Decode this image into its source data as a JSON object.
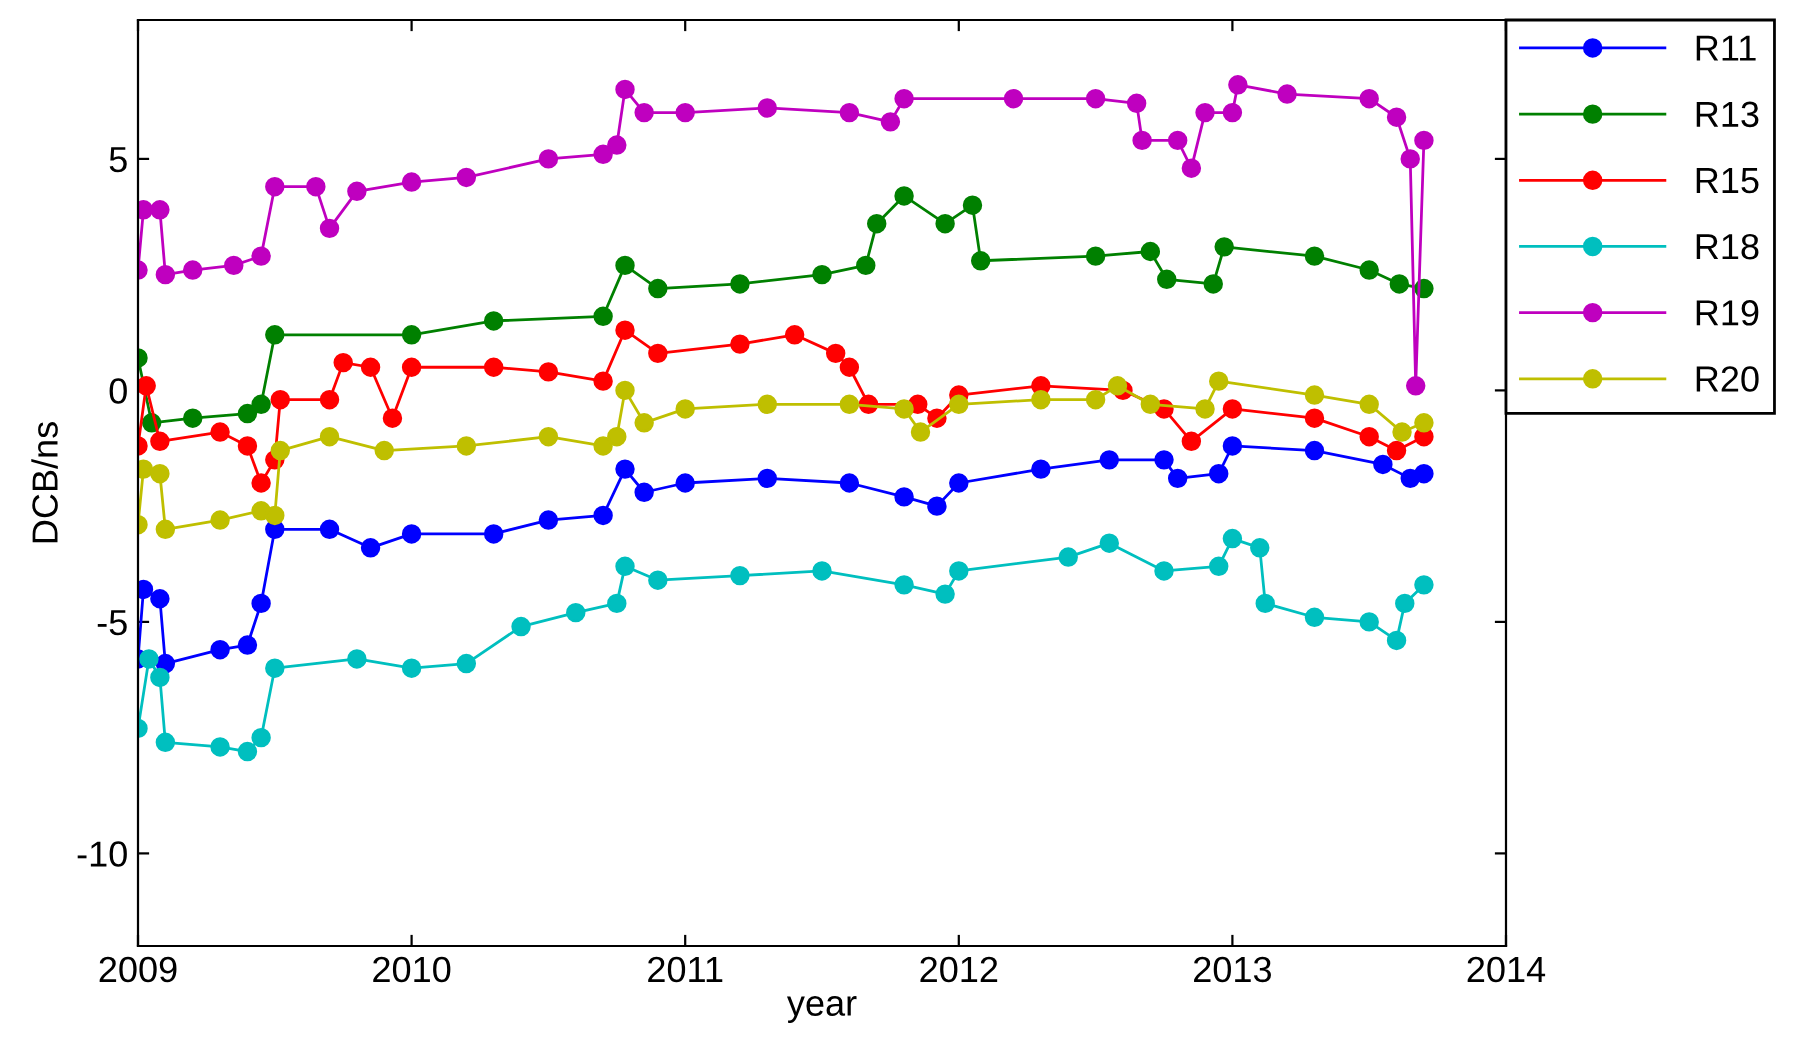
{
  "chart_data": {
    "type": "line",
    "xlabel": "year",
    "ylabel": "DCB/ns",
    "xlim": [
      2009,
      2014
    ],
    "xticks": [
      2009,
      2010,
      2011,
      2012,
      2013,
      2014
    ],
    "ylim": [
      -12,
      8
    ],
    "yticks": [
      -10,
      -5,
      0,
      5
    ],
    "grid": false,
    "legend": "top right",
    "marker": "circle",
    "line_style": "solid",
    "series": [
      {
        "name": "R11",
        "color": "#0000ff",
        "x": [
          2009,
          2009.02,
          2009.08,
          2009.1,
          2009.3,
          2009.4,
          2009.45,
          2009.5,
          2009.7,
          2009.85,
          2010.0,
          2010.3,
          2010.5,
          2010.7,
          2010.78,
          2010.85,
          2011.0,
          2011.3,
          2011.6,
          2011.8,
          2011.92,
          2012.0,
          2012.3,
          2012.55,
          2012.75,
          2012.8,
          2012.95,
          2013.0,
          2013.3,
          2013.55,
          2013.65,
          2013.7
        ],
        "values": [
          -5.8,
          -4.3,
          -4.5,
          -5.9,
          -5.6,
          -5.5,
          -4.6,
          -3.0,
          -3.0,
          -3.4,
          -3.1,
          -3.1,
          -2.8,
          -2.7,
          -1.7,
          -2.2,
          -2.0,
          -1.9,
          -2.0,
          -2.3,
          -2.5,
          -2.0,
          -1.7,
          -1.5,
          -1.5,
          -1.9,
          -1.8,
          -1.2,
          -1.3,
          -1.6,
          -1.9,
          -1.8
        ]
      },
      {
        "name": "R13",
        "color": "#008000",
        "x": [
          2009,
          2009.05,
          2009.2,
          2009.4,
          2009.45,
          2009.5,
          2010.0,
          2010.3,
          2010.7,
          2010.78,
          2010.9,
          2011.2,
          2011.5,
          2011.66,
          2011.7,
          2011.8,
          2011.95,
          2012.05,
          2012.08,
          2012.5,
          2012.7,
          2012.76,
          2012.93,
          2012.97,
          2013.3,
          2013.5,
          2013.61,
          2013.7
        ],
        "values": [
          0.7,
          -0.7,
          -0.6,
          -0.5,
          -0.3,
          1.2,
          1.2,
          1.5,
          1.6,
          2.7,
          2.2,
          2.3,
          2.5,
          2.7,
          3.6,
          4.2,
          3.6,
          4.0,
          2.8,
          2.9,
          3.0,
          2.4,
          2.3,
          3.1,
          2.9,
          2.6,
          2.3,
          2.2
        ]
      },
      {
        "name": "R15",
        "color": "#ff0000",
        "x": [
          2009,
          2009.03,
          2009.08,
          2009.3,
          2009.4,
          2009.45,
          2009.5,
          2009.52,
          2009.7,
          2009.75,
          2009.85,
          2009.93,
          2010.0,
          2010.3,
          2010.5,
          2010.7,
          2010.78,
          2010.9,
          2011.2,
          2011.4,
          2011.55,
          2011.6,
          2011.67,
          2011.85,
          2011.92,
          2012.0,
          2012.3,
          2012.6,
          2012.75,
          2012.85,
          2013.0,
          2013.3,
          2013.5,
          2013.6,
          2013.7
        ],
        "values": [
          -1.2,
          0.1,
          -1.1,
          -0.9,
          -1.2,
          -2.0,
          -1.5,
          -0.2,
          -0.2,
          0.6,
          0.5,
          -0.6,
          0.5,
          0.5,
          0.4,
          0.2,
          1.3,
          0.8,
          1.0,
          1.2,
          0.8,
          0.5,
          -0.3,
          -0.3,
          -0.6,
          -0.1,
          0.1,
          0.0,
          -0.4,
          -1.1,
          -0.4,
          -0.6,
          -1.0,
          -1.3,
          -1.0
        ]
      },
      {
        "name": "R18",
        "color": "#00bfbf",
        "x": [
          2009,
          2009.04,
          2009.08,
          2009.1,
          2009.3,
          2009.4,
          2009.45,
          2009.5,
          2009.8,
          2010.0,
          2010.2,
          2010.4,
          2010.6,
          2010.75,
          2010.78,
          2010.9,
          2011.2,
          2011.5,
          2011.8,
          2011.95,
          2012.0,
          2012.4,
          2012.55,
          2012.75,
          2012.95,
          2013.0,
          2013.1,
          2013.12,
          2013.3,
          2013.5,
          2013.6,
          2013.63,
          2013.7
        ],
        "values": [
          -7.3,
          -5.8,
          -6.2,
          -7.6,
          -7.7,
          -7.8,
          -7.5,
          -6.0,
          -5.8,
          -6.0,
          -5.9,
          -5.1,
          -4.8,
          -4.6,
          -3.8,
          -4.1,
          -4.0,
          -3.9,
          -4.2,
          -4.4,
          -3.9,
          -3.6,
          -3.3,
          -3.9,
          -3.8,
          -3.2,
          -3.4,
          -4.6,
          -4.9,
          -5.0,
          -5.4,
          -4.6,
          -4.2
        ]
      },
      {
        "name": "R19",
        "color": "#bf00bf",
        "x": [
          2009,
          2009.02,
          2009.08,
          2009.1,
          2009.2,
          2009.35,
          2009.45,
          2009.5,
          2009.65,
          2009.7,
          2009.8,
          2010.0,
          2010.2,
          2010.5,
          2010.7,
          2010.75,
          2010.78,
          2010.85,
          2011.0,
          2011.3,
          2011.6,
          2011.75,
          2011.8,
          2012.2,
          2012.5,
          2012.65,
          2012.67,
          2012.8,
          2012.85,
          2012.9,
          2013.0,
          2013.02,
          2013.2,
          2013.5,
          2013.6,
          2013.65,
          2013.67,
          2013.7
        ],
        "values": [
          2.6,
          3.9,
          3.9,
          2.5,
          2.6,
          2.7,
          2.9,
          4.4,
          4.4,
          3.5,
          4.3,
          4.5,
          4.6,
          5.0,
          5.1,
          5.3,
          6.5,
          6.0,
          6.0,
          6.1,
          6.0,
          5.8,
          6.3,
          6.3,
          6.3,
          6.2,
          5.4,
          5.4,
          4.8,
          6.0,
          6.0,
          6.6,
          6.4,
          6.3,
          5.9,
          5.0,
          0.1,
          5.4
        ]
      },
      {
        "name": "R20",
        "color": "#bfbf00",
        "x": [
          2009,
          2009.02,
          2009.08,
          2009.1,
          2009.3,
          2009.45,
          2009.5,
          2009.52,
          2009.7,
          2009.9,
          2010.2,
          2010.5,
          2010.7,
          2010.75,
          2010.78,
          2010.85,
          2011.0,
          2011.3,
          2011.6,
          2011.8,
          2011.86,
          2012.0,
          2012.3,
          2012.5,
          2012.58,
          2012.7,
          2012.9,
          2012.95,
          2013.3,
          2013.5,
          2013.62,
          2013.7
        ],
        "values": [
          -2.9,
          -1.7,
          -1.8,
          -3.0,
          -2.8,
          -2.6,
          -2.7,
          -1.3,
          -1.0,
          -1.3,
          -1.2,
          -1.0,
          -1.2,
          -1.0,
          0.0,
          -0.7,
          -0.4,
          -0.3,
          -0.3,
          -0.4,
          -0.9,
          -0.3,
          -0.2,
          -0.2,
          0.1,
          -0.3,
          -0.4,
          0.2,
          -0.1,
          -0.3,
          -0.9,
          -0.7
        ]
      }
    ]
  }
}
